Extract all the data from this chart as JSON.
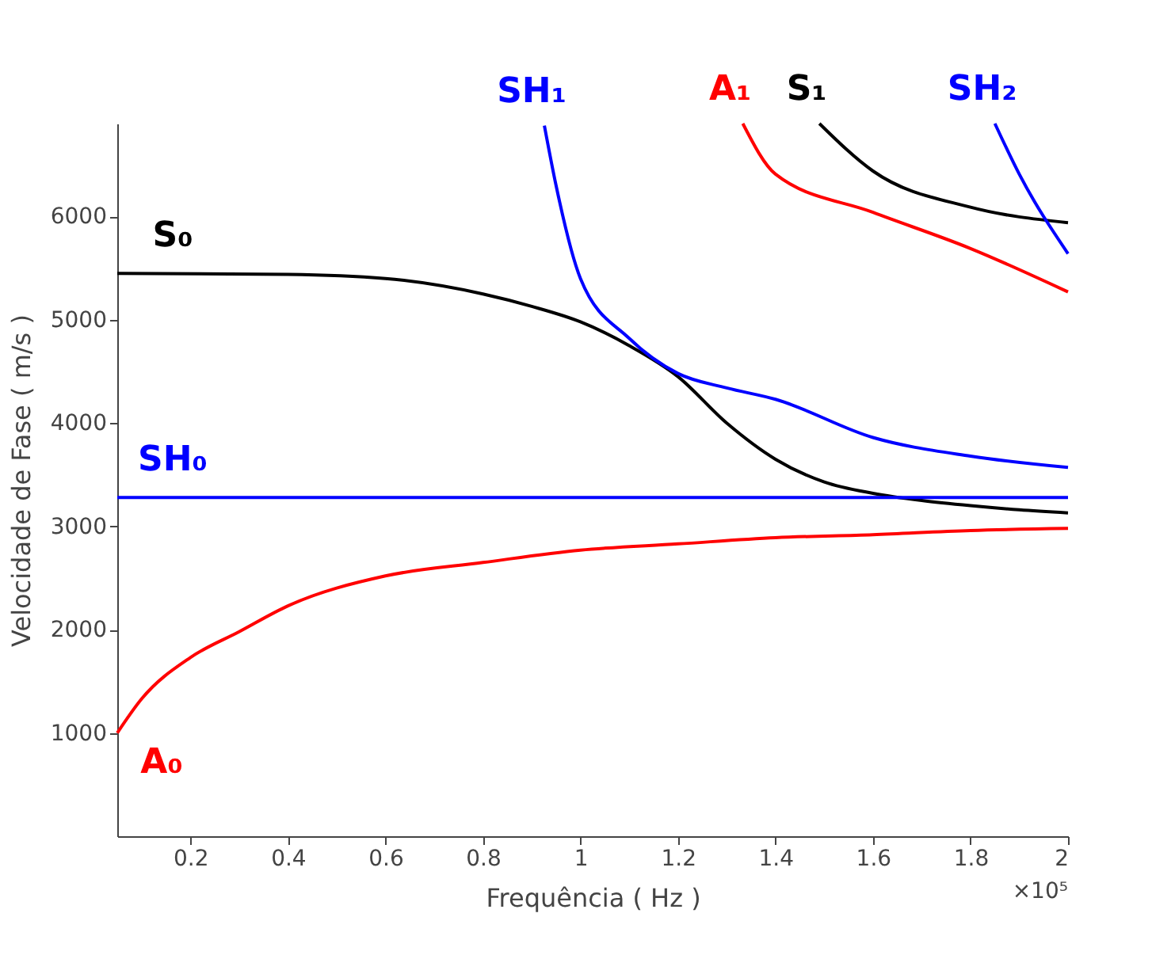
{
  "chart_data": {
    "type": "line",
    "xlabel": "Frequência ( Hz )",
    "ylabel": "Velocidade de Fase ( m/s )",
    "xlim": [
      0.05,
      2
    ],
    "ylim": [
      0,
      6900
    ],
    "xticks": [
      0.2,
      0.4,
      0.6,
      0.8,
      1,
      1.2,
      1.4,
      1.6,
      1.8,
      2
    ],
    "yticks": [
      1000,
      2000,
      3000,
      4000,
      5000,
      6000
    ],
    "grid": false,
    "marker": "none",
    "line_style": "solid",
    "series": [
      {
        "name": "S₀",
        "color": "#000000",
        "x": [
          0.05,
          0.4,
          0.6,
          0.8,
          0.9,
          1.0,
          1.1,
          1.2,
          1.3,
          1.4,
          1.5,
          1.6,
          1.7,
          1.8,
          1.9,
          2.0
        ],
        "values": [
          5450,
          5440,
          5400,
          5250,
          5130,
          4980,
          4750,
          4450,
          4000,
          3650,
          3430,
          3320,
          3250,
          3200,
          3160,
          3130
        ]
      },
      {
        "name": "SH₀",
        "color": "#0000ff",
        "x": [
          0.05,
          2.0
        ],
        "values": [
          3280,
          3280
        ]
      },
      {
        "name": "A₀",
        "color": "#ff0000",
        "x": [
          0.05,
          0.1,
          0.2,
          0.3,
          0.4,
          0.6,
          0.8,
          1.0,
          1.2,
          1.4,
          1.6,
          1.8,
          2.0
        ],
        "values": [
          1000,
          1330,
          1730,
          1980,
          2230,
          2520,
          2650,
          2770,
          2830,
          2890,
          2920,
          2960,
          2980
        ]
      },
      {
        "name": "SH₁",
        "color": "#0000ff",
        "x": [
          0.926,
          0.95,
          1.0,
          1.1,
          1.2,
          1.3,
          1.4,
          1.6,
          1.8,
          2.0
        ],
        "values": [
          6880,
          6300,
          5400,
          4820,
          4480,
          4340,
          4230,
          3860,
          3680,
          3570
        ]
      },
      {
        "name": "A₁",
        "color": "#ff0000",
        "x": [
          1.333,
          1.4,
          1.6,
          1.8,
          2.0
        ],
        "values": [
          6900,
          6410,
          6040,
          5690,
          5270
        ]
      },
      {
        "name": "S₁",
        "color": "#000000",
        "x": [
          1.49,
          1.6,
          1.8,
          2.0
        ],
        "values": [
          6900,
          6440,
          6090,
          5940
        ]
      },
      {
        "name": "SH₂",
        "color": "#0000ff",
        "x": [
          1.85,
          1.9,
          2.0
        ],
        "values": [
          6900,
          6410,
          5640
        ]
      }
    ],
    "annotations": [
      "×10⁵"
    ]
  }
}
